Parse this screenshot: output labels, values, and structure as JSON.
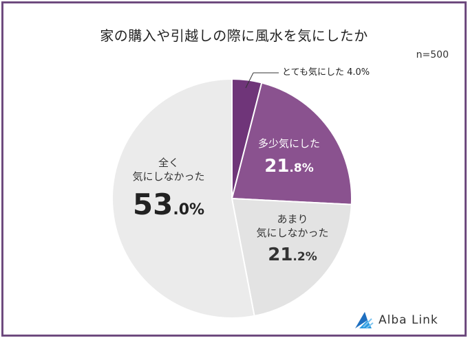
{
  "header": {
    "title": "家の購入や引越しの際に風水を気にしたか",
    "sample_size": "n=500"
  },
  "labels": {
    "very": {
      "text": "とても気にした 4.0%"
    },
    "somewhat": {
      "line1": "多少気にした",
      "int": "21",
      "dec": ".8%"
    },
    "notmuch": {
      "line1": "あまり",
      "line2": "気にしなかった",
      "int": "21",
      "dec": ".2%"
    },
    "notatall": {
      "line1": "全く",
      "line2": "気にしなかった",
      "int": "53",
      "dec": ".0%"
    }
  },
  "logo": {
    "text": "Alba Link"
  },
  "colors": {
    "very": "#6f3579",
    "somewhat": "#8a528f",
    "notmuch": "#e3e3e3",
    "notatall": "#ebebeb",
    "frame": "#6e4a7e",
    "logo_blue": "#1e88d8"
  },
  "chart_data": {
    "type": "pie",
    "title": "家の購入や引越しの際に風水を気にしたか",
    "subtitle": "n=500",
    "categories": [
      "とても気にした",
      "多少気にした",
      "あまり気にしなかった",
      "全く気にしなかった"
    ],
    "values": [
      4.0,
      21.8,
      21.2,
      53.0
    ],
    "unit": "%",
    "start_angle": "12 o'clock, clockwise",
    "legend": "none (direct labels)"
  }
}
